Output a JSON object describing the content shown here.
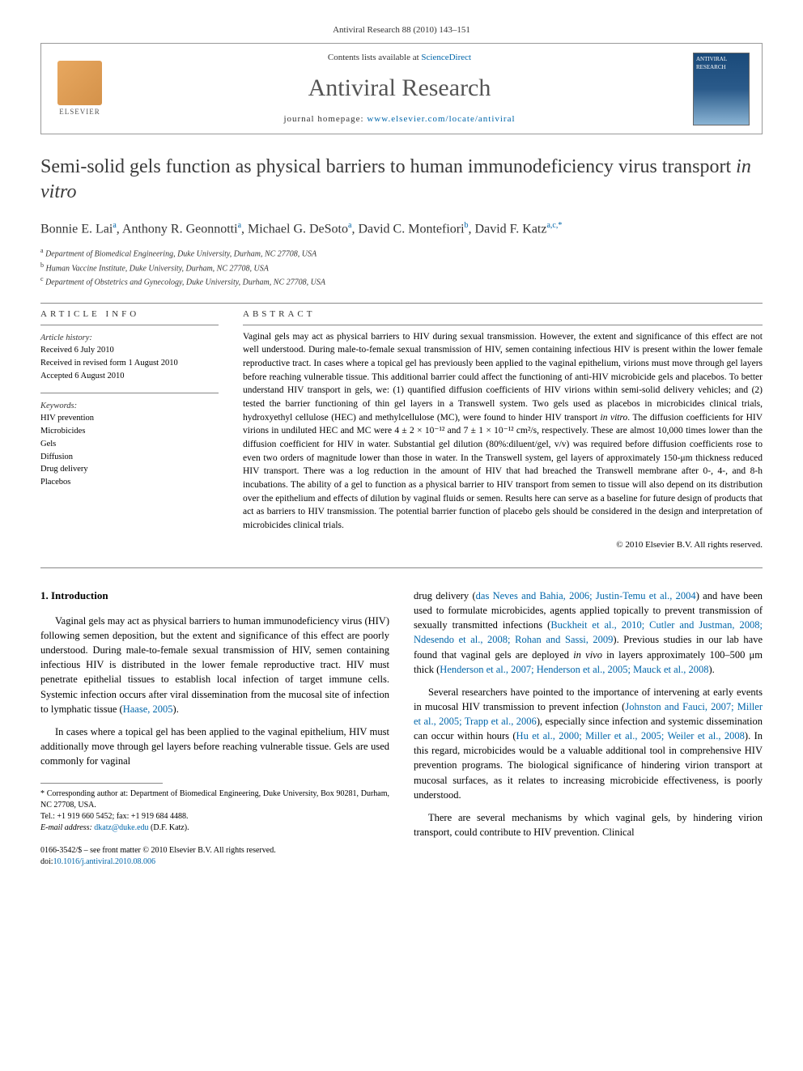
{
  "header": {
    "citation": "Antiviral Research 88 (2010) 143–151",
    "contents_prefix": "Contents lists available at ",
    "contents_link": "ScienceDirect",
    "journal": "Antiviral Research",
    "homepage_prefix": "journal homepage: ",
    "homepage_url": "www.elsevier.com/locate/antiviral",
    "elsevier_label": "ELSEVIER",
    "cover_label": "ANTIVIRAL RESEARCH"
  },
  "title": {
    "main": "Semi-solid gels function as physical barriers to human immunodeficiency virus transport ",
    "italic": "in vitro"
  },
  "authors": {
    "a1_name": "Bonnie E. Lai",
    "a1_aff": "a",
    "a2_name": "Anthony R. Geonnotti",
    "a2_aff": "a",
    "a3_name": "Michael G. DeSoto",
    "a3_aff": "a",
    "a4_name": "David C. Montefiori",
    "a4_aff": "b",
    "a5_name": "David F. Katz",
    "a5_aff": "a,c,",
    "a5_corr": "*"
  },
  "affiliations": {
    "a": "Department of Biomedical Engineering, Duke University, Durham, NC 27708, USA",
    "b": "Human Vaccine Institute, Duke University, Durham, NC 27708, USA",
    "c": "Department of Obstetrics and Gynecology, Duke University, Durham, NC 27708, USA"
  },
  "info": {
    "heading": "article info",
    "history_label": "Article history:",
    "received": "Received 6 July 2010",
    "revised": "Received in revised form 1 August 2010",
    "accepted": "Accepted 6 August 2010",
    "keywords_label": "Keywords:",
    "kw1": "HIV prevention",
    "kw2": "Microbicides",
    "kw3": "Gels",
    "kw4": "Diffusion",
    "kw5": "Drug delivery",
    "kw6": "Placebos"
  },
  "abstract": {
    "heading": "abstract",
    "text_p1": "Vaginal gels may act as physical barriers to HIV during sexual transmission. However, the extent and significance of this effect are not well understood. During male-to-female sexual transmission of HIV, semen containing infectious HIV is present within the lower female reproductive tract. In cases where a topical gel has previously been applied to the vaginal epithelium, virions must move through gel layers before reaching vulnerable tissue. This additional barrier could affect the functioning of anti-HIV microbicide gels and placebos. To better understand HIV transport in gels, we: (1) quantified diffusion coefficients of HIV virions within semi-solid delivery vehicles; and (2) tested the barrier functioning of thin gel layers in a Transwell system. Two gels used as placebos in microbicides clinical trials, hydroxyethyl cellulose (HEC) and methylcellulose (MC), were found to hinder HIV transport ",
    "text_italic1": "in vitro",
    "text_p2": ". The diffusion coefficients for HIV virions in undiluted HEC and MC were 4 ± 2 × 10⁻¹² and 7 ± 1 × 10⁻¹² cm²/s, respectively. These are almost 10,000 times lower than the diffusion coefficient for HIV in water. Substantial gel dilution (80%:diluent/gel, v/v) was required before diffusion coefficients rose to even two orders of magnitude lower than those in water. In the Transwell system, gel layers of approximately 150-μm thickness reduced HIV transport. There was a log reduction in the amount of HIV that had breached the Transwell membrane after 0-, 4-, and 8-h incubations. The ability of a gel to function as a physical barrier to HIV transport from semen to tissue will also depend on its distribution over the epithelium and effects of dilution by vaginal fluids or semen. Results here can serve as a baseline for future design of products that act as barriers to HIV transmission. The potential barrier function of placebo gels should be considered in the design and interpretation of microbicides clinical trials.",
    "copyright": "© 2010 Elsevier B.V. All rights reserved."
  },
  "body": {
    "section1_heading": "1. Introduction",
    "col1_p1": "Vaginal gels may act as physical barriers to human immunodeficiency virus (HIV) following semen deposition, but the extent and significance of this effect are poorly understood. During male-to-female sexual transmission of HIV, semen containing infectious HIV is distributed in the lower female reproductive tract. HIV must penetrate epithelial tissues to establish local infection of target immune cells. Systemic infection occurs after viral dissemination from the mucosal site of infection to lymphatic tissue (",
    "col1_p1_cite": "Haase, 2005",
    "col1_p1_end": ").",
    "col1_p2": "In cases where a topical gel has been applied to the vaginal epithelium, HIV must additionally move through gel layers before reaching vulnerable tissue. Gels are used commonly for vaginal",
    "col2_p1_a": "drug delivery (",
    "col2_p1_cite1": "das Neves and Bahia, 2006; Justin-Temu et al., 2004",
    "col2_p1_b": ") and have been used to formulate microbicides, agents applied topically to prevent transmission of sexually transmitted infections (",
    "col2_p1_cite2": "Buckheit et al., 2010; Cutler and Justman, 2008; Ndesendo et al., 2008; Rohan and Sassi, 2009",
    "col2_p1_c": "). Previous studies in our lab have found that vaginal gels are deployed ",
    "col2_p1_italic": "in vivo",
    "col2_p1_d": " in layers approximately 100–500 μm thick (",
    "col2_p1_cite3": "Henderson et al., 2007; Henderson et al., 2005; Mauck et al., 2008",
    "col2_p1_e": ").",
    "col2_p2_a": "Several researchers have pointed to the importance of intervening at early events in mucosal HIV transmission to prevent infection (",
    "col2_p2_cite1": "Johnston and Fauci, 2007; Miller et al., 2005; Trapp et al., 2006",
    "col2_p2_b": "), especially since infection and systemic dissemination can occur within hours (",
    "col2_p2_cite2": "Hu et al., 2000; Miller et al., 2005; Weiler et al., 2008",
    "col2_p2_c": "). In this regard, microbicides would be a valuable additional tool in comprehensive HIV prevention programs. The biological significance of hindering virion transport at mucosal surfaces, as it relates to increasing microbicide effectiveness, is poorly understood.",
    "col2_p3": "There are several mechanisms by which vaginal gels, by hindering virion transport, could contribute to HIV prevention. Clinical"
  },
  "footnotes": {
    "corr_label": "* Corresponding author at: Department of Biomedical Engineering, Duke University, Box 90281, Durham, NC 27708, USA.",
    "tel": "Tel.: +1 919 660 5452; fax: +1 919 684 4488.",
    "email_label": "E-mail address: ",
    "email": "dkatz@duke.edu",
    "email_name": " (D.F. Katz)."
  },
  "footer": {
    "issn": "0166-3542/$ – see front matter © 2010 Elsevier B.V. All rights reserved.",
    "doi_label": "doi:",
    "doi": "10.1016/j.antiviral.2010.08.006"
  }
}
